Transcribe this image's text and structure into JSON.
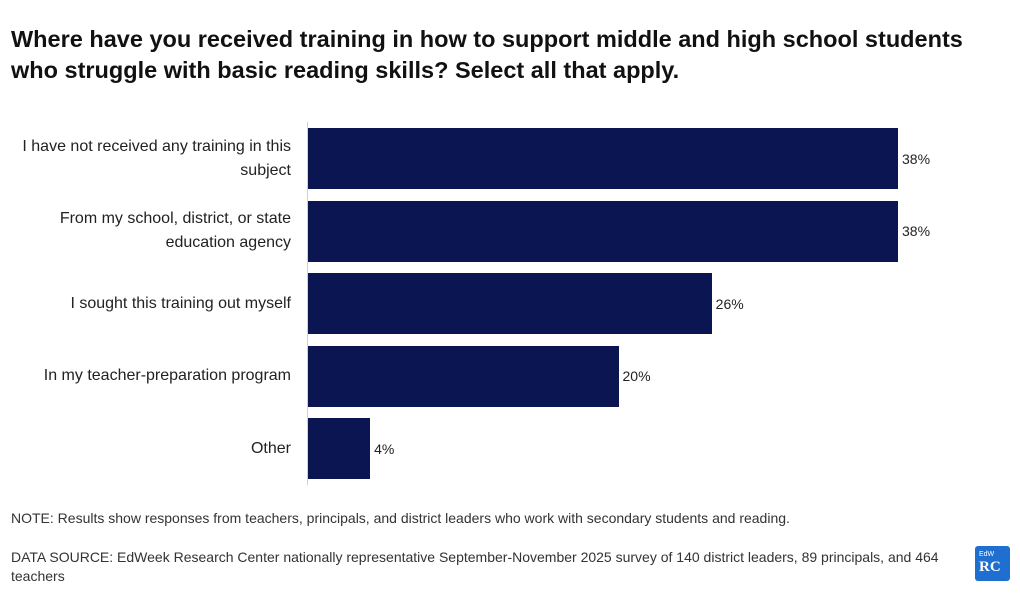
{
  "chart_data": {
    "type": "bar",
    "orientation": "horizontal",
    "title": "Where have you received training in how to support middle and high school students who struggle with basic reading skills? Select all that apply.",
    "categories": [
      "I have not received any training in this subject",
      "From my school, district, or state education agency",
      "I sought this training out myself",
      "In my teacher-preparation program",
      "Other"
    ],
    "values": [
      38,
      38,
      26,
      20,
      4
    ],
    "value_labels": [
      "38%",
      "38%",
      "26%",
      "20%",
      "4%"
    ],
    "color": "#0a1551",
    "note": "NOTE: Results show responses from teachers, principals, and district leaders who work with secondary students and reading.",
    "source": "DATA SOURCE: EdWeek Research Center nationally representative September-November 2025 survey of 140 district leaders, 89 principals, and 464 teachers"
  },
  "logo": {
    "small": "EdW",
    "large": "RC"
  }
}
